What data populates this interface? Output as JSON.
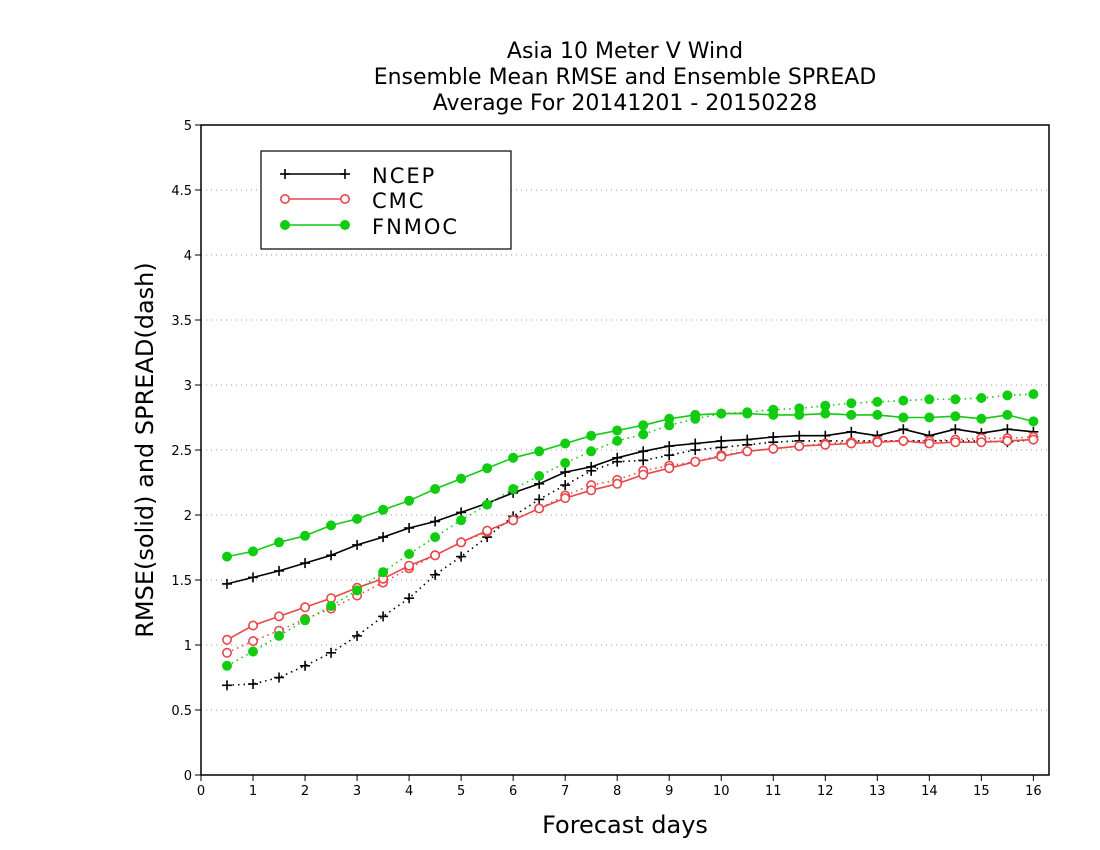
{
  "chart_data": {
    "type": "line",
    "title": [
      "Asia 10 Meter V Wind",
      "Ensemble Mean RMSE and Ensemble SPREAD",
      "Average For 20141201 - 20150228"
    ],
    "xlabel": "Forecast days",
    "ylabel": "RMSE(solid) and SPREAD(dash)",
    "xlim": [
      0,
      16.3
    ],
    "ylim": [
      0,
      5
    ],
    "xticks": [
      "0",
      "1",
      "2",
      "3",
      "4",
      "5",
      "6",
      "7",
      "8",
      "9",
      "10",
      "11",
      "12",
      "13",
      "14",
      "15",
      "16"
    ],
    "yticks": [
      "0",
      "0.5",
      "1",
      "1.5",
      "2",
      "2.5",
      "3",
      "3.5",
      "4",
      "4.5",
      "5"
    ],
    "grid": "horizontal dotted",
    "legend_position": "top-left",
    "x": [
      0.5,
      1,
      1.5,
      2,
      2.5,
      3,
      3.5,
      4,
      4.5,
      5,
      5.5,
      6,
      6.5,
      7,
      7.5,
      8,
      8.5,
      9,
      9.5,
      10,
      10.5,
      11,
      11.5,
      12,
      12.5,
      13,
      13.5,
      14,
      14.5,
      15,
      15.5,
      16
    ],
    "series": [
      {
        "name": "NCEP",
        "color": "#000000",
        "marker": "plus",
        "rmse": [
          1.47,
          1.52,
          1.57,
          1.63,
          1.69,
          1.77,
          1.83,
          1.9,
          1.95,
          2.02,
          2.09,
          2.17,
          2.24,
          2.33,
          2.37,
          2.44,
          2.49,
          2.53,
          2.55,
          2.57,
          2.58,
          2.6,
          2.61,
          2.61,
          2.64,
          2.61,
          2.66,
          2.61,
          2.66,
          2.63,
          2.66,
          2.64
        ],
        "spread": [
          0.69,
          0.7,
          0.75,
          0.84,
          0.94,
          1.07,
          1.22,
          1.36,
          1.54,
          1.68,
          1.83,
          1.99,
          2.12,
          2.23,
          2.34,
          2.41,
          2.42,
          2.46,
          2.5,
          2.52,
          2.54,
          2.56,
          2.57,
          2.57,
          2.57,
          2.57,
          2.57,
          2.57,
          2.57,
          2.57,
          2.56,
          2.58
        ]
      },
      {
        "name": "CMC",
        "color": "#e8474b",
        "marker": "open-circle",
        "rmse": [
          1.04,
          1.15,
          1.22,
          1.29,
          1.36,
          1.44,
          1.51,
          1.61,
          1.69,
          1.79,
          1.88,
          1.96,
          2.05,
          2.13,
          2.19,
          2.24,
          2.31,
          2.36,
          2.41,
          2.45,
          2.49,
          2.51,
          2.53,
          2.54,
          2.55,
          2.56,
          2.57,
          2.55,
          2.56,
          2.56,
          2.57,
          2.58
        ],
        "spread": [
          0.94,
          1.03,
          1.11,
          1.2,
          1.28,
          1.38,
          1.48,
          1.59,
          1.69,
          1.79,
          1.87,
          1.96,
          2.05,
          2.15,
          2.23,
          2.27,
          2.34,
          2.38,
          2.41,
          2.46,
          2.49,
          2.51,
          2.53,
          2.55,
          2.56,
          2.57,
          2.57,
          2.57,
          2.58,
          2.59,
          2.59,
          2.6
        ]
      },
      {
        "name": "FNMOC",
        "color": "#11cc11",
        "marker": "filled-circle",
        "rmse": [
          1.68,
          1.72,
          1.79,
          1.84,
          1.92,
          1.97,
          2.04,
          2.11,
          2.2,
          2.28,
          2.36,
          2.44,
          2.49,
          2.55,
          2.61,
          2.65,
          2.69,
          2.74,
          2.77,
          2.78,
          2.78,
          2.77,
          2.77,
          2.78,
          2.77,
          2.77,
          2.75,
          2.75,
          2.76,
          2.74,
          2.77,
          2.72
        ],
        "spread": [
          0.84,
          0.95,
          1.07,
          1.19,
          1.3,
          1.42,
          1.56,
          1.7,
          1.83,
          1.96,
          2.08,
          2.2,
          2.3,
          2.4,
          2.49,
          2.57,
          2.62,
          2.69,
          2.74,
          2.78,
          2.79,
          2.81,
          2.82,
          2.84,
          2.86,
          2.87,
          2.88,
          2.89,
          2.89,
          2.9,
          2.92,
          2.93
        ]
      }
    ]
  }
}
